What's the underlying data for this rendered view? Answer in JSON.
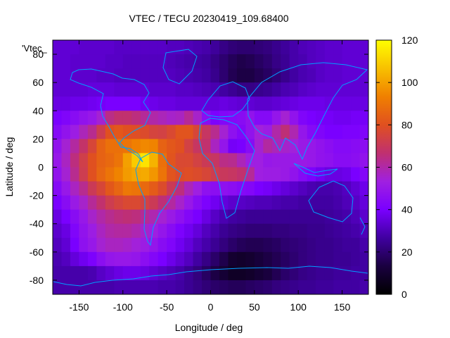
{
  "chart_data": {
    "type": "heatmap",
    "title": "VTEC / TECU 20230419_109.68400",
    "xlabel": "Longitude / deg",
    "ylabel": "Latitude / deg",
    "legend_entry": "'Vtec_",
    "xlim": [
      -180,
      180
    ],
    "ylim": [
      -90,
      90
    ],
    "x_ticks": [
      -150,
      -100,
      -50,
      0,
      50,
      100,
      150
    ],
    "y_ticks": [
      -80,
      -60,
      -40,
      -20,
      0,
      20,
      40,
      60,
      80
    ],
    "x_tick_labels": [
      "-150",
      "-100",
      "-50",
      "0",
      "50",
      "100",
      "150"
    ],
    "y_tick_labels": [
      "-80",
      "-60",
      "-40",
      "-20",
      "0",
      "20",
      "40",
      "60",
      "80"
    ],
    "colorbar": {
      "range": [
        0,
        120
      ],
      "ticks": [
        0,
        20,
        40,
        60,
        80,
        100,
        120
      ],
      "tick_labels": [
        "0",
        "20",
        "40",
        "60",
        "80",
        "100",
        "120"
      ],
      "palette": [
        "#000000",
        "#1a0040",
        "#4000a0",
        "#7a00ff",
        "#a020e0",
        "#c03070",
        "#e05020",
        "#f08000",
        "#f8c000",
        "#ffff00"
      ]
    },
    "overlay": "coastlines",
    "overlay_color": "#00a0ff",
    "grid": "off",
    "legend_placement": "top-left",
    "vtec_grid": {
      "lon": [
        -175,
        -165,
        -155,
        -145,
        -135,
        -125,
        -115,
        -105,
        -95,
        -85,
        -75,
        -65,
        -55,
        -45,
        -35,
        -25,
        -15,
        -5,
        5,
        15,
        25,
        35,
        45,
        55,
        65,
        75,
        85,
        95,
        105,
        115,
        125,
        135,
        145,
        155,
        165,
        175
      ],
      "lat": [
        85,
        75,
        65,
        55,
        45,
        35,
        25,
        15,
        5,
        -5,
        -15,
        -25,
        -35,
        -45,
        -55,
        -65,
        -75,
        -85
      ],
      "values": [
        [
          34,
          34,
          34,
          33,
          33,
          33,
          33,
          32,
          32,
          32,
          32,
          32,
          32,
          31,
          31,
          30,
          29,
          28,
          26,
          23,
          21,
          20,
          20,
          21,
          22,
          24,
          26,
          28,
          30,
          31,
          32,
          33,
          33,
          34,
          34,
          34
        ],
        [
          34,
          34,
          33,
          33,
          33,
          33,
          32,
          32,
          31,
          31,
          31,
          31,
          31,
          30,
          29,
          28,
          27,
          26,
          23,
          20,
          17,
          15,
          16,
          18,
          20,
          23,
          25,
          28,
          29,
          31,
          32,
          33,
          33,
          34,
          34,
          34
        ],
        [
          34,
          34,
          33,
          33,
          33,
          32,
          32,
          31,
          31,
          31,
          31,
          31,
          31,
          31,
          30,
          29,
          28,
          27,
          24,
          20,
          16,
          14,
          14,
          16,
          18,
          21,
          24,
          27,
          29,
          30,
          32,
          33,
          33,
          34,
          34,
          34
        ],
        [
          34,
          34,
          34,
          34,
          35,
          35,
          35,
          34,
          34,
          34,
          34,
          33,
          33,
          33,
          32,
          32,
          31,
          30,
          29,
          27,
          25,
          23,
          23,
          24,
          25,
          27,
          29,
          30,
          32,
          33,
          34,
          34,
          34,
          34,
          34,
          34
        ],
        [
          36,
          36,
          37,
          37,
          38,
          39,
          40,
          40,
          40,
          40,
          38,
          37,
          36,
          36,
          35,
          35,
          35,
          35,
          35,
          36,
          35,
          34,
          34,
          33,
          33,
          34,
          35,
          36,
          37,
          37,
          37,
          36,
          36,
          36,
          36,
          36
        ],
        [
          40,
          42,
          45,
          48,
          50,
          55,
          64,
          67,
          67,
          65,
          62,
          60,
          58,
          56,
          57,
          62,
          56,
          46,
          41,
          43,
          44,
          45,
          48,
          44,
          44,
          49,
          55,
          48,
          42,
          40,
          39,
          39,
          38,
          38,
          39,
          39
        ],
        [
          44,
          48,
          52,
          58,
          63,
          72,
          80,
          82,
          80,
          79,
          78,
          75,
          74,
          77,
          81,
          81,
          76,
          69,
          63,
          55,
          47,
          43,
          48,
          54,
          52,
          60,
          66,
          59,
          49,
          44,
          42,
          40,
          40,
          41,
          41,
          42
        ],
        [
          48,
          55,
          61,
          68,
          76,
          85,
          89,
          89,
          90,
          93,
          95,
          94,
          85,
          82,
          80,
          74,
          69,
          67,
          57,
          49,
          39,
          40,
          45,
          55,
          61,
          58,
          56,
          54,
          51,
          50,
          48,
          46,
          44,
          44,
          45,
          46
        ],
        [
          50,
          57,
          65,
          73,
          80,
          85,
          87,
          90,
          100,
          109,
          114,
          104,
          89,
          81,
          77,
          77,
          74,
          71,
          69,
          64,
          63,
          58,
          53,
          53,
          50,
          51,
          51,
          51,
          51,
          50,
          48,
          47,
          45,
          45,
          46,
          48
        ],
        [
          48,
          55,
          63,
          72,
          80,
          86,
          90,
          94,
          99,
          101,
          102,
          98,
          90,
          81,
          78,
          79,
          78,
          76,
          72,
          70,
          69,
          67,
          62,
          53,
          52,
          52,
          51,
          48,
          44,
          41,
          38,
          36,
          36,
          37,
          40,
          43
        ],
        [
          44,
          50,
          57,
          63,
          71,
          76,
          82,
          86,
          91,
          90,
          87,
          83,
          78,
          71,
          65,
          58,
          53,
          47,
          46,
          47,
          46,
          44,
          43,
          40,
          39,
          37,
          35,
          33,
          31,
          29,
          28,
          28,
          29,
          31,
          34,
          37
        ],
        [
          40,
          45,
          51,
          56,
          62,
          67,
          72,
          75,
          77,
          77,
          74,
          71,
          66,
          61,
          56,
          50,
          45,
          41,
          38,
          35,
          33,
          32,
          31,
          30,
          30,
          29,
          28,
          28,
          27,
          27,
          27,
          27,
          28,
          30,
          32,
          35
        ],
        [
          36,
          40,
          45,
          50,
          56,
          60,
          63,
          65,
          66,
          65,
          62,
          59,
          55,
          51,
          47,
          43,
          40,
          36,
          32,
          29,
          27,
          26,
          25,
          25,
          25,
          25,
          25,
          25,
          25,
          25,
          25,
          26,
          27,
          28,
          30,
          33
        ],
        [
          33,
          36,
          42,
          48,
          52,
          57,
          60,
          61,
          61,
          59,
          56,
          53,
          49,
          45,
          41,
          38,
          35,
          31,
          28,
          25,
          23,
          22,
          21,
          21,
          21,
          22,
          22,
          23,
          23,
          24,
          24,
          25,
          26,
          27,
          28,
          30
        ],
        [
          31,
          34,
          40,
          47,
          50,
          55,
          57,
          57,
          56,
          54,
          52,
          49,
          45,
          42,
          38,
          35,
          31,
          28,
          25,
          22,
          19,
          17,
          16,
          16,
          17,
          18,
          20,
          21,
          22,
          23,
          24,
          24,
          25,
          26,
          26,
          28
        ],
        [
          29,
          31,
          35,
          38,
          41,
          46,
          49,
          50,
          50,
          49,
          46,
          43,
          40,
          37,
          34,
          31,
          27,
          23,
          19,
          15,
          10,
          9,
          10,
          12,
          14,
          16,
          18,
          20,
          22,
          23,
          24,
          24,
          25,
          25,
          26,
          27
        ],
        [
          28,
          28,
          28,
          28,
          29,
          32,
          34,
          36,
          37,
          37,
          36,
          34,
          32,
          30,
          28,
          25,
          22,
          18,
          14,
          11,
          8,
          8,
          9,
          11,
          13,
          16,
          19,
          21,
          23,
          24,
          25,
          25,
          26,
          26,
          27,
          27
        ],
        [
          28,
          28,
          28,
          28,
          28,
          28,
          28,
          29,
          29,
          29,
          29,
          29,
          28,
          28,
          27,
          25,
          23,
          21,
          19,
          18,
          17,
          17,
          18,
          19,
          20,
          22,
          23,
          24,
          25,
          25,
          26,
          26,
          27,
          27,
          27,
          28
        ]
      ]
    }
  }
}
